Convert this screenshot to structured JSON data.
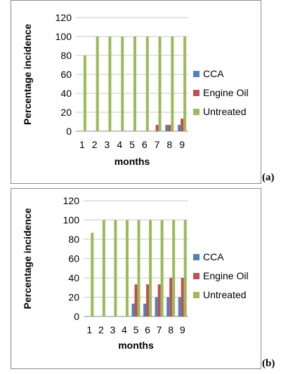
{
  "chart_data": [
    {
      "type": "bar",
      "panel_label": "(a)",
      "categories": [
        "1",
        "2",
        "3",
        "4",
        "5",
        "6",
        "7",
        "8",
        "9"
      ],
      "series": [
        {
          "name": "CCA",
          "color": "#4f81bd",
          "values": [
            0,
            0,
            0,
            0,
            0,
            0,
            0,
            6.7,
            6.7
          ]
        },
        {
          "name": "Engine Oil",
          "color": "#c0504d",
          "values": [
            0,
            0,
            0,
            0,
            0,
            0,
            6.7,
            6.7,
            13.3
          ]
        },
        {
          "name": "Untreated",
          "color": "#9bbb59",
          "values": [
            80,
            100,
            100,
            100,
            100,
            100,
            100,
            100,
            100
          ]
        }
      ],
      "xlabel": "months",
      "ylabel": "Percentage incidence",
      "ylim": [
        0,
        120
      ],
      "yticks": [
        "0",
        "20",
        "40",
        "60",
        "80",
        "100",
        "120"
      ],
      "grid": true,
      "legend_position": "right"
    },
    {
      "type": "bar",
      "panel_label": "(b)",
      "categories": [
        "1",
        "2",
        "3",
        "4",
        "5",
        "6",
        "7",
        "8",
        "9"
      ],
      "series": [
        {
          "name": "CCA",
          "color": "#4f81bd",
          "values": [
            0,
            0,
            0,
            0,
            13.3,
            13.3,
            20,
            20,
            20
          ]
        },
        {
          "name": "Engine Oil",
          "color": "#c0504d",
          "values": [
            0,
            0,
            0,
            0,
            33.3,
            33.3,
            33.3,
            40,
            40
          ]
        },
        {
          "name": "Untreated",
          "color": "#9bbb59",
          "values": [
            86.7,
            100,
            100,
            100,
            100,
            100,
            100,
            100,
            100
          ]
        }
      ],
      "xlabel": "months",
      "ylabel": "Percentage incidence",
      "ylim": [
        0,
        120
      ],
      "yticks": [
        "0",
        "20",
        "40",
        "60",
        "80",
        "100",
        "120"
      ],
      "grid": true,
      "legend_position": "right"
    }
  ]
}
